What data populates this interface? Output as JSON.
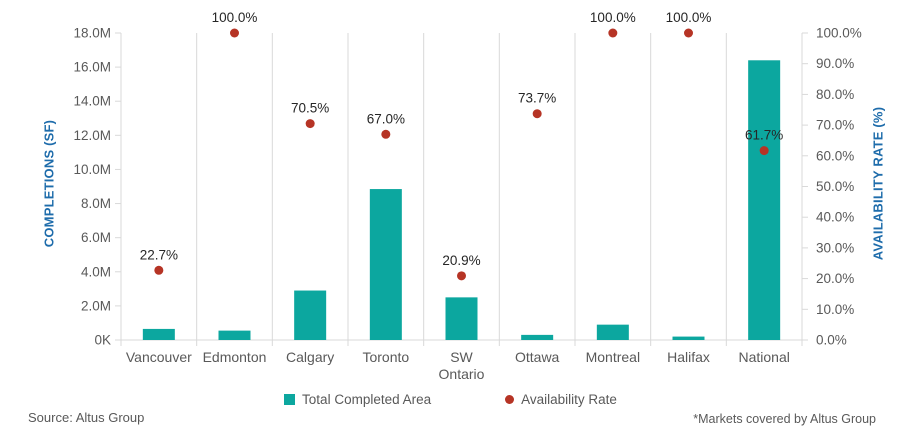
{
  "chart_data": {
    "type": "bar",
    "subtype": "dual-axis bar + point markers",
    "categories": [
      "Vancouver",
      "Edmonton",
      "Calgary",
      "Toronto",
      "SW Ontario",
      "Ottawa",
      "Montreal",
      "Halifax",
      "National"
    ],
    "series": [
      {
        "name": "Total Completed Area",
        "type": "bar",
        "axis": "left",
        "unit": "million SF",
        "values": [
          0.65,
          0.55,
          2.9,
          8.85,
          2.5,
          0.3,
          0.9,
          0.2,
          16.4
        ]
      },
      {
        "name": "Availability Rate",
        "type": "point",
        "axis": "right",
        "unit": "%",
        "values": [
          22.7,
          100.0,
          70.5,
          67.0,
          20.9,
          73.7,
          100.0,
          100.0,
          61.7
        ],
        "labels": [
          "22.7%",
          "100.0%",
          "70.5%",
          "67.0%",
          "20.9%",
          "73.7%",
          "100.0%",
          "100.0%",
          "61.7%"
        ]
      }
    ],
    "left_axis": {
      "title": "COMPLETIONS (SF)",
      "ticks": [
        "18.0M",
        "16.0M",
        "14.0M",
        "12.0M",
        "10.0M",
        "8.0M",
        "6.0M",
        "4.0M",
        "2.0M",
        "0K"
      ],
      "min": 0,
      "max": 18
    },
    "right_axis": {
      "title": "AVAILABILITY RATE (%)",
      "ticks": [
        "100.0%",
        "90.0%",
        "80.0%",
        "70.0%",
        "60.0%",
        "50.0%",
        "40.0%",
        "30.0%",
        "20.0%",
        "10.0%",
        "0.0%"
      ],
      "min": 0,
      "max": 100
    },
    "grid": "vertical category separators only",
    "legend_position": "bottom center",
    "colors": {
      "bar": "#0ca79f",
      "point": "#b63425",
      "axis_title": "#1e6cab",
      "tick_text": "#595959",
      "category_text": "#595959",
      "value_label_text": "#262626",
      "grid_line": "#d9d9d9"
    }
  },
  "legend": {
    "bar_label": "Total Completed Area",
    "dot_label": "Availability Rate"
  },
  "footer": {
    "source": "Source: Altus Group",
    "note": "*Markets covered by Altus Group"
  }
}
